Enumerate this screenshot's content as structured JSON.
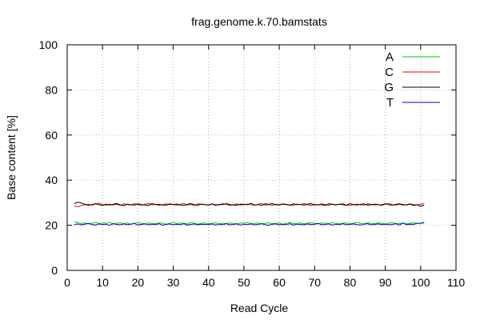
{
  "chart_data": {
    "type": "line",
    "title": "frag.genome.k.70.bamstats",
    "xlabel": "Read Cycle",
    "ylabel": "Base content [%]",
    "xlim": [
      0,
      110
    ],
    "ylim": [
      0,
      100
    ],
    "xticks": [
      "0",
      "10",
      "20",
      "30",
      "40",
      "50",
      "60",
      "70",
      "80",
      "90",
      "100",
      "110"
    ],
    "yticks": [
      "0",
      "20",
      "40",
      "60",
      "80",
      "100"
    ],
    "grid": true,
    "legend_position": "top-right",
    "x": [
      2,
      3,
      4,
      5,
      6,
      7,
      8,
      9,
      10,
      11,
      12,
      13,
      14,
      15,
      16,
      17,
      18,
      19,
      20,
      21,
      22,
      23,
      24,
      25,
      26,
      27,
      28,
      29,
      30,
      31,
      32,
      33,
      34,
      35,
      36,
      37,
      38,
      39,
      40,
      41,
      42,
      43,
      44,
      45,
      46,
      47,
      48,
      49,
      50,
      51,
      52,
      53,
      54,
      55,
      56,
      57,
      58,
      59,
      60,
      61,
      62,
      63,
      64,
      65,
      66,
      67,
      68,
      69,
      70,
      71,
      72,
      73,
      74,
      75,
      76,
      77,
      78,
      79,
      80,
      81,
      82,
      83,
      84,
      85,
      86,
      87,
      88,
      89,
      90,
      91,
      92,
      93,
      94,
      95,
      96,
      97,
      98,
      99,
      100,
      101
    ],
    "series": [
      {
        "name": "A",
        "color": "#00c800",
        "values": [
          21.5,
          21.2,
          20.8,
          21.0,
          20.6,
          20.9,
          21.3,
          20.7,
          21.0,
          20.8,
          21.2,
          20.6,
          20.9,
          21.1,
          20.7,
          21.0,
          20.5,
          20.8,
          21.2,
          20.9,
          20.6,
          21.0,
          20.8,
          20.7,
          21.1,
          20.9,
          20.5,
          20.8,
          21.2,
          20.7,
          21.0,
          20.9,
          20.6,
          21.3,
          20.8,
          20.5,
          20.9,
          21.0,
          20.7,
          20.8,
          21.1,
          20.6,
          20.9,
          20.7,
          21.0,
          20.8,
          20.6,
          21.0,
          20.9,
          21.2,
          20.7,
          20.8,
          21.0,
          20.6,
          20.9,
          21.1,
          20.7,
          20.8,
          21.0,
          20.5,
          20.9,
          21.2,
          20.7,
          20.8,
          21.0,
          20.6,
          20.9,
          21.1,
          20.8,
          20.6,
          21.0,
          20.9,
          20.7,
          21.2,
          20.8,
          20.6,
          20.9,
          21.0,
          20.7,
          20.9,
          21.3,
          20.8,
          20.6,
          21.0,
          20.9,
          20.7,
          21.1,
          20.8,
          20.6,
          20.9,
          21.2,
          20.7,
          20.8,
          21.0,
          20.6,
          20.9,
          21.1,
          20.8,
          21.0,
          21.3
        ]
      },
      {
        "name": "C",
        "color": "#ff0000",
        "values": [
          28.6,
          28.2,
          28.8,
          29.1,
          29.3,
          28.9,
          29.5,
          29.8,
          29.2,
          28.9,
          29.4,
          29.0,
          29.3,
          28.8,
          29.5,
          29.2,
          29.0,
          29.6,
          29.1,
          28.9,
          29.3,
          29.7,
          29.0,
          29.4,
          28.8,
          29.2,
          29.5,
          29.1,
          29.3,
          28.9,
          29.4,
          29.6,
          29.0,
          29.2,
          28.8,
          29.5,
          29.3,
          29.1,
          28.9,
          29.4,
          29.2,
          29.0,
          29.6,
          29.3,
          28.8,
          29.1,
          29.5,
          29.0,
          29.2,
          29.4,
          29.1,
          28.9,
          29.3,
          29.6,
          29.0,
          29.2,
          28.8,
          29.4,
          29.1,
          29.5,
          29.3,
          29.0,
          28.9,
          29.4,
          29.2,
          29.6,
          29.1,
          28.8,
          29.3,
          29.0,
          29.5,
          29.2,
          28.9,
          29.4,
          29.1,
          29.3,
          29.6,
          29.0,
          28.8,
          29.2,
          29.4,
          29.1,
          28.9,
          29.5,
          29.3,
          29.0,
          29.2,
          28.8,
          29.4,
          29.6,
          29.1,
          29.0,
          29.3,
          28.9,
          29.2,
          29.5,
          29.1,
          29.0,
          29.4,
          29.6
        ]
      },
      {
        "name": "G",
        "color": "#000000",
        "values": [
          29.6,
          30.2,
          29.9,
          29.3,
          28.9,
          29.2,
          29.6,
          29.1,
          28.8,
          29.4,
          29.0,
          29.3,
          29.7,
          29.0,
          28.7,
          29.4,
          29.1,
          28.9,
          29.5,
          29.2,
          29.0,
          28.8,
          29.6,
          29.1,
          29.3,
          29.0,
          28.9,
          29.5,
          29.2,
          29.4,
          29.0,
          28.8,
          29.3,
          29.6,
          29.1,
          28.9,
          29.4,
          29.2,
          29.0,
          29.5,
          28.8,
          29.3,
          29.1,
          29.6,
          29.2,
          29.0,
          28.9,
          29.4,
          29.3,
          29.1,
          29.7,
          29.0,
          29.2,
          28.8,
          29.5,
          29.3,
          29.6,
          29.1,
          29.0,
          29.4,
          29.2,
          28.9,
          29.5,
          29.1,
          29.3,
          28.9,
          29.4,
          29.6,
          29.0,
          29.2,
          29.1,
          28.8,
          29.5,
          29.3,
          29.0,
          29.4,
          29.1,
          28.9,
          29.6,
          29.2,
          29.0,
          29.3,
          29.5,
          28.9,
          29.1,
          29.4,
          29.2,
          29.0,
          29.6,
          29.1,
          28.9,
          29.3,
          29.5,
          29.2,
          29.0,
          29.4,
          28.8,
          29.1,
          28.4,
          29.0
        ]
      },
      {
        "name": "T",
        "color": "#0000cc",
        "values": [
          20.3,
          20.6,
          20.2,
          20.5,
          20.8,
          20.4,
          20.1,
          20.6,
          20.3,
          20.5,
          20.0,
          20.7,
          20.4,
          20.2,
          20.6,
          20.3,
          20.5,
          20.8,
          20.1,
          20.4,
          20.6,
          20.2,
          20.5,
          20.3,
          20.7,
          20.0,
          20.4,
          20.6,
          20.2,
          20.5,
          20.3,
          20.7,
          20.1,
          20.4,
          20.6,
          20.2,
          20.5,
          20.4,
          20.3,
          20.6,
          20.1,
          20.5,
          20.3,
          20.7,
          20.2,
          20.4,
          20.6,
          20.1,
          20.5,
          20.3,
          20.6,
          20.2,
          20.4,
          20.7,
          20.3,
          20.0,
          20.5,
          20.6,
          20.2,
          20.4,
          20.3,
          20.7,
          20.1,
          20.5,
          20.4,
          20.2,
          20.6,
          20.3,
          20.5,
          20.8,
          20.2,
          20.4,
          20.6,
          20.1,
          20.5,
          20.3,
          20.7,
          20.2,
          20.4,
          20.6,
          20.3,
          20.1,
          20.5,
          20.7,
          20.2,
          20.4,
          20.6,
          20.3,
          20.5,
          20.2,
          20.4,
          20.7,
          20.1,
          21.0,
          20.3,
          20.5,
          20.4,
          20.8,
          20.9,
          21.1
        ]
      }
    ]
  }
}
